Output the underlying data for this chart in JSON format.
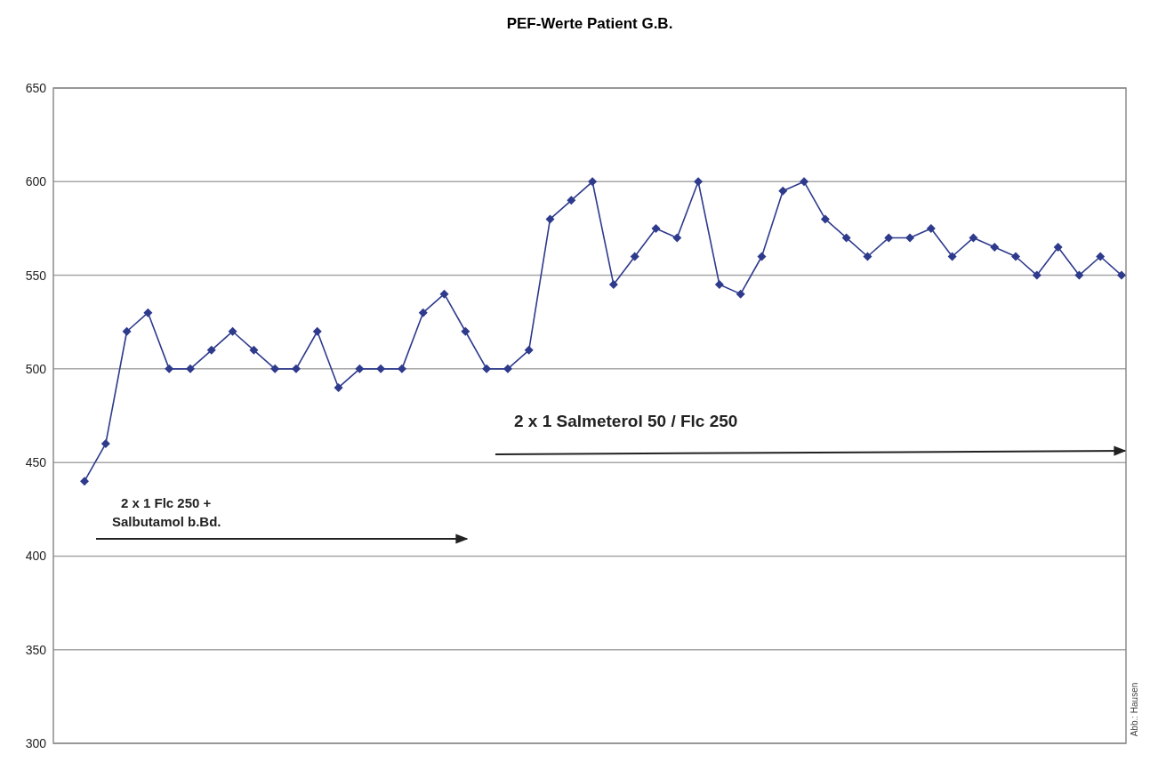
{
  "chart_data": {
    "type": "line",
    "title": "PEF-Werte Patient G.B.",
    "categories": [
      null,
      null,
      null,
      null,
      null,
      null,
      null,
      null,
      null,
      null,
      null,
      null,
      null,
      null,
      null,
      null,
      null,
      null,
      null,
      null,
      null,
      null,
      null,
      null,
      null,
      null,
      null,
      null,
      null,
      null,
      null,
      null,
      null,
      null,
      null,
      null,
      null,
      null,
      null,
      null,
      null,
      null,
      null,
      null,
      null,
      null,
      null,
      null,
      null,
      null
    ],
    "series": [
      {
        "color": "#2e3a8c",
        "values": [
          440,
          460,
          520,
          530,
          500,
          500,
          510,
          520,
          510,
          500,
          500,
          520,
          490,
          500,
          500,
          500,
          530,
          540,
          520,
          500,
          500,
          510,
          580,
          590,
          600,
          545,
          560,
          575,
          570,
          600,
          545,
          540,
          560,
          595,
          600,
          580,
          570,
          560,
          570,
          570,
          575,
          560,
          570,
          565,
          560,
          550,
          565,
          550,
          560,
          550
        ]
      }
    ],
    "ylim": [
      300,
      650
    ],
    "yticks": [
      300,
      350,
      400,
      450,
      500,
      550,
      600,
      650
    ],
    "grid": "y",
    "marker": "diamond",
    "line_style": "solid",
    "annotations": [
      "2 x 1 Flc 250 +\nSalbutamol b.Bd.",
      "2 x 1 Salmeterol 50 / Flc 250",
      "Abb.: Hausen"
    ]
  }
}
